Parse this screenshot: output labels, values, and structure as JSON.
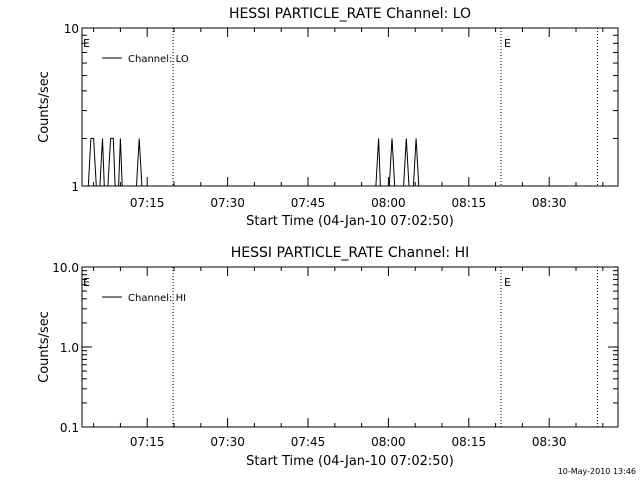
{
  "footer": {
    "timestamp": "10-May-2010 13:46"
  },
  "chart_data": [
    {
      "type": "line",
      "title": "HESSI PARTICLE_RATE Channel: LO",
      "xlabel": "Start Time (04-Jan-10 07:02:50)",
      "ylabel": "Counts/sec",
      "y_scale": "log",
      "ylim": [
        1,
        10
      ],
      "xlim": [
        "07:02:50",
        "08:42:50"
      ],
      "x_ticks": [
        "07:15",
        "07:30",
        "07:45",
        "08:00",
        "08:15",
        "08:30"
      ],
      "y_ticks": [
        {
          "value": 1,
          "label": "1"
        },
        {
          "value": 10,
          "label": "10"
        }
      ],
      "legend": {
        "placement": "top-left",
        "entries": [
          "Channel: LO"
        ]
      },
      "series": [
        {
          "name": "Channel: LO",
          "color": "#000000",
          "points": [
            [
              "07:04:00",
              1
            ],
            [
              "07:04:30",
              2
            ],
            [
              "07:05:00",
              2
            ],
            [
              "07:05:30",
              1
            ],
            [
              "07:06:10",
              1
            ],
            [
              "07:06:40",
              2
            ],
            [
              "07:07:00",
              1
            ],
            [
              "07:07:40",
              1
            ],
            [
              "07:08:10",
              2
            ],
            [
              "07:08:40",
              2
            ],
            [
              "07:09:00",
              1
            ],
            [
              "07:09:40",
              1
            ],
            [
              "07:10:00",
              2
            ],
            [
              "07:10:20",
              1
            ],
            [
              "07:13:00",
              1
            ],
            [
              "07:13:30",
              2
            ],
            [
              "07:14:00",
              1
            ],
            [
              "07:57:40",
              1
            ],
            [
              "07:58:10",
              2
            ],
            [
              "07:58:30",
              1
            ],
            [
              "08:00:10",
              1
            ],
            [
              "08:00:40",
              2
            ],
            [
              "08:01:10",
              1
            ],
            [
              "08:02:50",
              1
            ],
            [
              "08:03:20",
              2
            ],
            [
              "08:03:50",
              1
            ],
            [
              "08:04:40",
              1
            ],
            [
              "08:05:10",
              2
            ],
            [
              "08:05:40",
              1
            ]
          ]
        }
      ],
      "vertical_markers": [
        {
          "time": "07:19:50",
          "label": ""
        },
        {
          "time": "08:21:00",
          "label": "E"
        },
        {
          "time": "08:39:00",
          "label": ""
        }
      ],
      "start_marker_label": "E"
    },
    {
      "type": "line",
      "title": "HESSI PARTICLE_RATE Channel: HI",
      "xlabel": "Start Time (04-Jan-10 07:02:50)",
      "ylabel": "Counts/sec",
      "y_scale": "log",
      "ylim": [
        0.1,
        10
      ],
      "xlim": [
        "07:02:50",
        "08:42:50"
      ],
      "x_ticks": [
        "07:15",
        "07:30",
        "07:45",
        "08:00",
        "08:15",
        "08:30"
      ],
      "y_ticks": [
        {
          "value": 0.1,
          "label": "0.1"
        },
        {
          "value": 1,
          "label": "1.0"
        },
        {
          "value": 10,
          "label": "10.0"
        }
      ],
      "legend": {
        "placement": "top-left",
        "entries": [
          "Channel: HI"
        ]
      },
      "series": [
        {
          "name": "Channel: HI",
          "color": "#000000",
          "points": []
        }
      ],
      "vertical_markers": [
        {
          "time": "07:19:50",
          "label": ""
        },
        {
          "time": "08:21:00",
          "label": "E"
        },
        {
          "time": "08:39:00",
          "label": ""
        }
      ],
      "start_marker_label": "E"
    }
  ]
}
